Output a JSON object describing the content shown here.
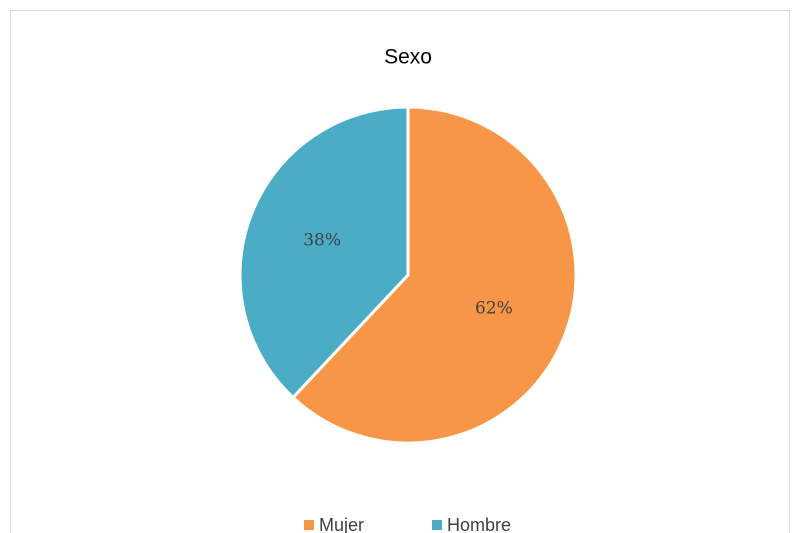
{
  "chart_data": {
    "type": "pie",
    "title": "Sexo",
    "categories": [
      "Mujer",
      "Hombre"
    ],
    "values": [
      62,
      38
    ],
    "value_labels": [
      "62%",
      "38%"
    ],
    "colors": [
      "#f79646",
      "#4bacc6"
    ]
  }
}
